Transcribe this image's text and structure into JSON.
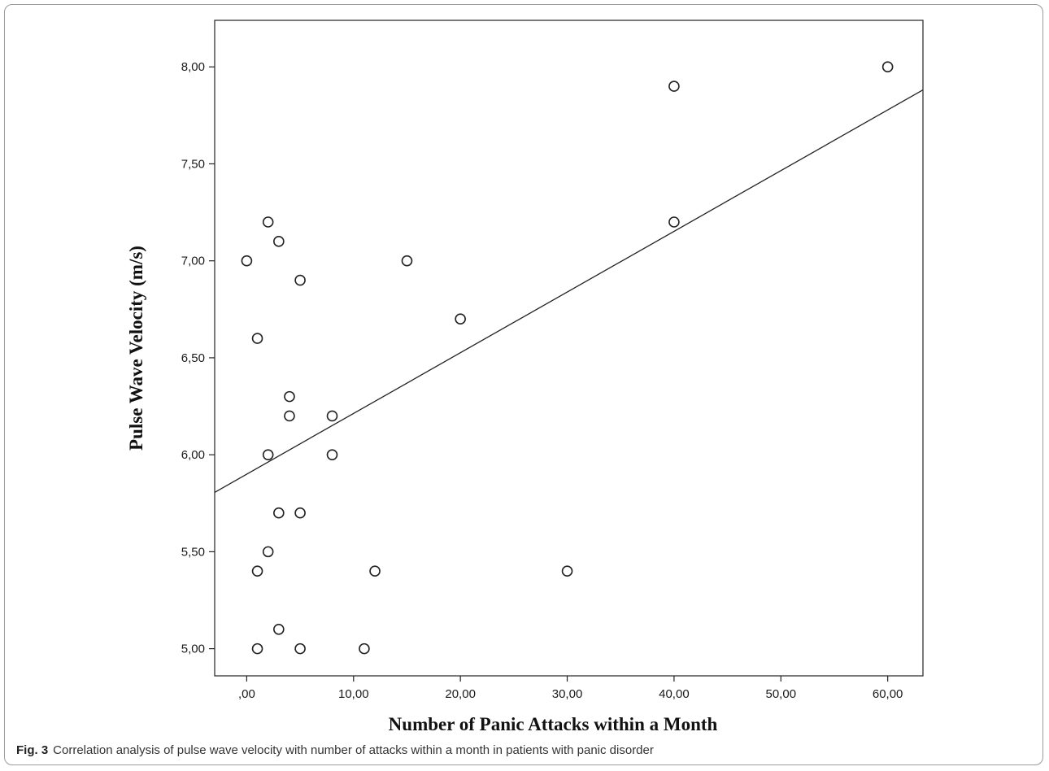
{
  "chart_data": {
    "type": "scatter",
    "title": "",
    "xlabel": "Number of Panic Attacks within a Month",
    "ylabel": "Pulse Wave Velocity (m/s)",
    "xlim": [
      -3.0,
      63.3
    ],
    "ylim": [
      4.86,
      8.24
    ],
    "x_ticks": [
      {
        "value": 0,
        "label": ",00"
      },
      {
        "value": 10,
        "label": "10,00"
      },
      {
        "value": 20,
        "label": "20,00"
      },
      {
        "value": 30,
        "label": "30,00"
      },
      {
        "value": 40,
        "label": "40,00"
      },
      {
        "value": 50,
        "label": "50,00"
      },
      {
        "value": 60,
        "label": "60,00"
      }
    ],
    "y_ticks": [
      {
        "value": 5.0,
        "label": "5,00"
      },
      {
        "value": 5.5,
        "label": "5,50"
      },
      {
        "value": 6.0,
        "label": "6,00"
      },
      {
        "value": 6.5,
        "label": "6,50"
      },
      {
        "value": 7.0,
        "label": "7,00"
      },
      {
        "value": 7.5,
        "label": "7,50"
      },
      {
        "value": 8.0,
        "label": "8,00"
      }
    ],
    "grid": false,
    "series": [
      {
        "points": [
          {
            "x": 0,
            "y": 7.0
          },
          {
            "x": 1,
            "y": 6.6
          },
          {
            "x": 1,
            "y": 5.4
          },
          {
            "x": 1,
            "y": 5.0
          },
          {
            "x": 2,
            "y": 7.2
          },
          {
            "x": 2,
            "y": 6.0
          },
          {
            "x": 2,
            "y": 5.5
          },
          {
            "x": 3,
            "y": 7.1
          },
          {
            "x": 3,
            "y": 5.7
          },
          {
            "x": 3,
            "y": 5.1
          },
          {
            "x": 4,
            "y": 6.3
          },
          {
            "x": 4,
            "y": 6.2
          },
          {
            "x": 5,
            "y": 6.9
          },
          {
            "x": 5,
            "y": 5.7
          },
          {
            "x": 5,
            "y": 5.0
          },
          {
            "x": 8,
            "y": 6.2
          },
          {
            "x": 8,
            "y": 6.0
          },
          {
            "x": 11,
            "y": 5.0
          },
          {
            "x": 12,
            "y": 5.4
          },
          {
            "x": 15,
            "y": 7.0
          },
          {
            "x": 20,
            "y": 6.7
          },
          {
            "x": 30,
            "y": 5.4
          },
          {
            "x": 40,
            "y": 7.9
          },
          {
            "x": 40,
            "y": 7.2
          },
          {
            "x": 60,
            "y": 8.0
          }
        ]
      }
    ],
    "fit_line": {
      "intercept": 5.9,
      "slope": 0.0313
    }
  },
  "caption": {
    "label": "Fig. 3",
    "text": "Correlation analysis of pulse wave velocity with number of attacks within a month in patients with panic disorder"
  }
}
